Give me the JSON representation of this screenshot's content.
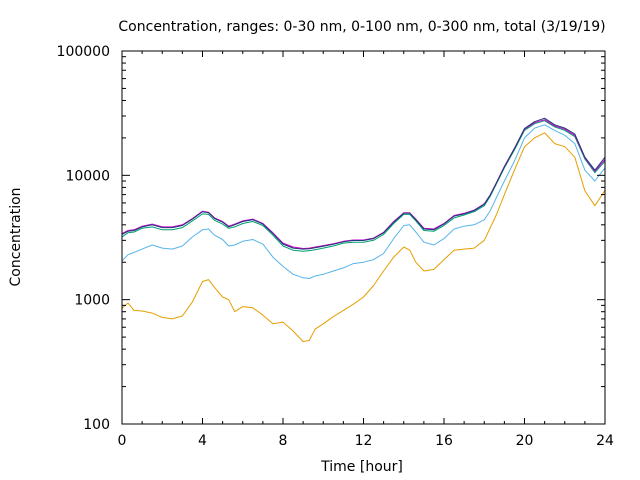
{
  "chart_data": {
    "type": "line",
    "title": "Concentration, ranges: 0-30 nm, 0-100 nm, 0-300 nm, total (3/19/19)",
    "xlabel": "Time [hour]",
    "ylabel": "Concentration",
    "xlim": [
      0,
      24
    ],
    "ylim": [
      100,
      100000
    ],
    "yscale": "log",
    "grid": false,
    "legend": "none",
    "x_ticks": [
      0,
      4,
      8,
      12,
      16,
      20,
      24
    ],
    "x_tick_labels": [
      "0",
      "4",
      "8",
      "12",
      "16",
      "20",
      "24"
    ],
    "y_ticks": [
      100,
      1000,
      10000,
      100000
    ],
    "y_tick_labels": [
      "100",
      "1000",
      "10000",
      "100000"
    ],
    "series": [
      {
        "color": "#e69f00",
        "x": [
          0,
          0.3,
          0.6,
          1,
          1.5,
          2,
          2.5,
          3,
          3.5,
          4,
          4.3,
          4.6,
          5,
          5.3,
          5.6,
          6,
          6.5,
          7,
          7.5,
          8,
          8.5,
          9,
          9.3,
          9.6,
          10,
          10.5,
          11,
          11.5,
          12,
          12.5,
          13,
          13.5,
          14,
          14.3,
          14.6,
          15,
          15.5,
          16,
          16.5,
          17,
          17.5,
          18,
          18.3,
          18.6,
          19,
          19.5,
          20,
          20.5,
          21,
          21.5,
          22,
          22.5,
          23,
          23.5,
          24
        ],
        "y": [
          850,
          940,
          820,
          810,
          780,
          720,
          700,
          740,
          960,
          1400,
          1450,
          1250,
          1050,
          1000,
          800,
          880,
          860,
          750,
          640,
          660,
          560,
          460,
          470,
          580,
          640,
          730,
          820,
          920,
          1050,
          1300,
          1700,
          2200,
          2650,
          2500,
          2000,
          1700,
          1750,
          2100,
          2500,
          2550,
          2600,
          3000,
          3800,
          4800,
          7000,
          11000,
          17000,
          20000,
          22000,
          18000,
          17000,
          14000,
          7500,
          5700,
          7600
        ]
      },
      {
        "color": "#56b4e9",
        "x": [
          0,
          0.3,
          0.6,
          1,
          1.5,
          2,
          2.5,
          3,
          3.5,
          4,
          4.3,
          4.6,
          5,
          5.3,
          5.6,
          6,
          6.5,
          7,
          7.5,
          8,
          8.5,
          9,
          9.3,
          9.6,
          10,
          10.5,
          11,
          11.5,
          12,
          12.5,
          13,
          13.5,
          14,
          14.3,
          14.6,
          15,
          15.5,
          16,
          16.5,
          17,
          17.5,
          18,
          18.3,
          18.6,
          19,
          19.5,
          20,
          20.5,
          21,
          21.5,
          22,
          22.5,
          23,
          23.5,
          24
        ],
        "y": [
          2050,
          2300,
          2400,
          2550,
          2750,
          2600,
          2550,
          2700,
          3200,
          3650,
          3700,
          3300,
          3050,
          2700,
          2750,
          2950,
          3050,
          2800,
          2200,
          1850,
          1600,
          1500,
          1480,
          1550,
          1600,
          1700,
          1800,
          1950,
          2000,
          2100,
          2350,
          3100,
          3950,
          4000,
          3500,
          2900,
          2750,
          3100,
          3700,
          3900,
          4000,
          4400,
          5200,
          6600,
          9000,
          13000,
          20000,
          24000,
          25500,
          23000,
          21000,
          18000,
          11000,
          9000,
          11500
        ]
      },
      {
        "color": "#009e73",
        "x": [
          0,
          0.3,
          0.6,
          1,
          1.5,
          2,
          2.5,
          3,
          3.5,
          4,
          4.3,
          4.6,
          5,
          5.3,
          5.6,
          6,
          6.5,
          7,
          7.5,
          8,
          8.5,
          9,
          9.3,
          9.6,
          10,
          10.5,
          11,
          11.5,
          12,
          12.5,
          13,
          13.5,
          14,
          14.3,
          14.6,
          15,
          15.5,
          16,
          16.5,
          17,
          17.5,
          18,
          18.3,
          18.6,
          19,
          19.5,
          20,
          20.5,
          21,
          21.5,
          22,
          22.5,
          23,
          23.5,
          24
        ],
        "y": [
          3200,
          3450,
          3500,
          3750,
          3850,
          3650,
          3650,
          3800,
          4300,
          4900,
          4850,
          4350,
          4050,
          3750,
          3850,
          4100,
          4250,
          3950,
          3300,
          2700,
          2500,
          2450,
          2480,
          2520,
          2600,
          2700,
          2850,
          2900,
          2900,
          3000,
          3350,
          4100,
          4850,
          4850,
          4300,
          3600,
          3550,
          3950,
          4550,
          4800,
          5100,
          5700,
          6800,
          8500,
          11500,
          16000,
          23000,
          26000,
          27500,
          24500,
          23000,
          20500,
          13500,
          10500,
          13000
        ]
      },
      {
        "color": "#cc00cc",
        "x": [
          0,
          0.3,
          0.6,
          1,
          1.5,
          2,
          2.5,
          3,
          3.5,
          4,
          4.3,
          4.6,
          5,
          5.3,
          5.6,
          6,
          6.5,
          7,
          7.5,
          8,
          8.5,
          9,
          9.3,
          9.6,
          10,
          10.5,
          11,
          11.5,
          12,
          12.5,
          13,
          13.5,
          14,
          14.3,
          14.6,
          15,
          15.5,
          16,
          16.5,
          17,
          17.5,
          18,
          18.3,
          18.6,
          19,
          19.5,
          20,
          20.5,
          21,
          21.5,
          22,
          22.5,
          23,
          23.5,
          24
        ],
        "y": [
          3400,
          3600,
          3650,
          3900,
          4050,
          3850,
          3850,
          4000,
          4500,
          5150,
          5050,
          4550,
          4250,
          3900,
          4050,
          4300,
          4450,
          4100,
          3450,
          2850,
          2650,
          2580,
          2600,
          2650,
          2720,
          2820,
          2950,
          3020,
          3020,
          3130,
          3480,
          4250,
          5000,
          5000,
          4450,
          3750,
          3700,
          4100,
          4750,
          4950,
          5250,
          5900,
          7000,
          8700,
          11800,
          16500,
          23500,
          26500,
          28000,
          25000,
          23500,
          21000,
          13800,
          10800,
          13400
        ]
      },
      {
        "color": "#1f3a78",
        "x": [
          0,
          0.3,
          0.6,
          1,
          1.5,
          2,
          2.5,
          3,
          3.5,
          4,
          4.3,
          4.6,
          5,
          5.3,
          5.6,
          6,
          6.5,
          7,
          7.5,
          8,
          8.5,
          9,
          9.3,
          9.6,
          10,
          10.5,
          11,
          11.5,
          12,
          12.5,
          13,
          13.5,
          14,
          14.3,
          14.6,
          15,
          15.5,
          16,
          16.5,
          17,
          17.5,
          18,
          18.3,
          18.6,
          19,
          19.5,
          20,
          20.5,
          21,
          21.5,
          22,
          22.5,
          23,
          23.5,
          24
        ],
        "y": [
          3350,
          3550,
          3600,
          3850,
          4000,
          3800,
          3800,
          3950,
          4450,
          5100,
          5000,
          4500,
          4200,
          3850,
          4000,
          4250,
          4400,
          4050,
          3400,
          2800,
          2600,
          2550,
          2570,
          2620,
          2690,
          2790,
          2920,
          2990,
          2990,
          3100,
          3450,
          4200,
          4950,
          4950,
          4400,
          3700,
          3650,
          4050,
          4700,
          4900,
          5200,
          5850,
          6950,
          8650,
          11700,
          16400,
          23800,
          27000,
          28800,
          25500,
          24000,
          21500,
          14000,
          11000,
          14000
        ]
      }
    ]
  }
}
